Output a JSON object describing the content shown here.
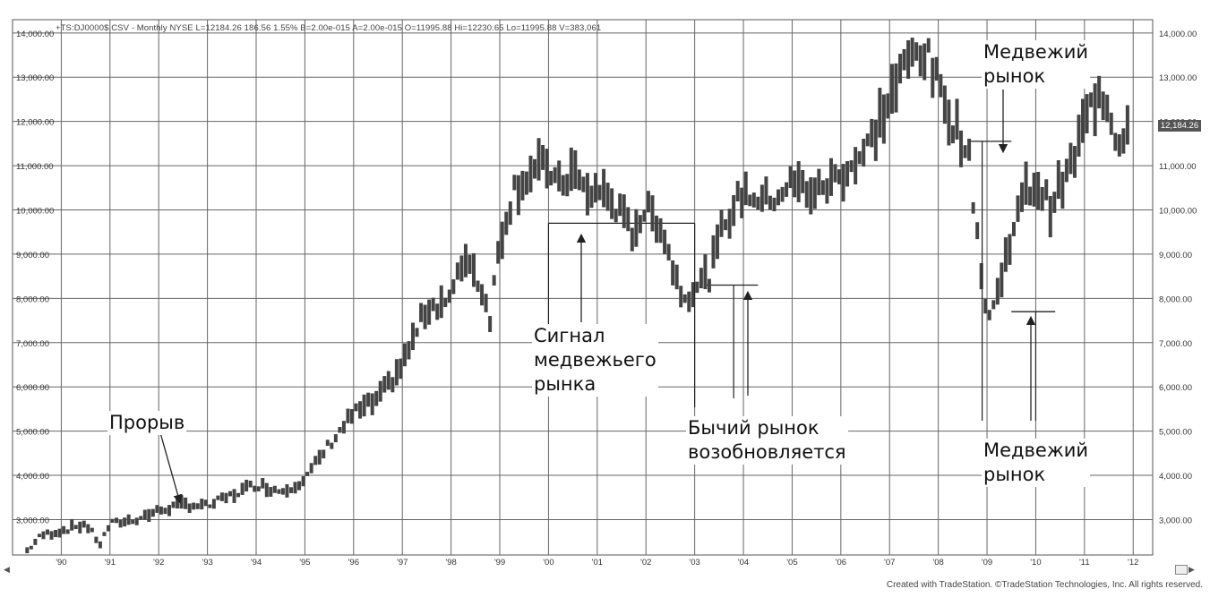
{
  "header": {
    "text": "+TS:DJ0000$.CSV - Monthly NYSE L=12184.26 186.56 1.55% B=2.00e-015 A=2.00e-015 O=11995.88 Hi=12230.65 Lo=11995.88 V=383,061"
  },
  "credit": "Created with TradeStation. ©TradeStation Technologies, Inc. All rights reserved.",
  "last_price_label": "12,184.26",
  "annotations": {
    "breakout": "Прорыв",
    "bear_signal": "Сигнал\nмедвежьего\nрынка",
    "bull_resumes": "Бычий рынок\nвозобновляется",
    "bear_market_top": "Медвежий\nрынок",
    "bear_market_bottom": "Медвежий\nрынок"
  },
  "chart_data": {
    "type": "ohlc",
    "title": "",
    "xlabel": "",
    "ylabel": "",
    "ylim": [
      2200,
      14300
    ],
    "grid": true,
    "x_ticks": [
      "'90",
      "'91",
      "'92",
      "'93",
      "'94",
      "'95",
      "'96",
      "'97",
      "'98",
      "'99",
      "'00",
      "'01",
      "'02",
      "'03",
      "'04",
      "'05",
      "'06",
      "'07",
      "'08",
      "'09",
      "'10",
      "'11",
      "'12"
    ],
    "y_ticks": [
      "3,000.00",
      "4,000.00",
      "5,000.00",
      "6,000.00",
      "7,000.00",
      "8,000.00",
      "9,000.00",
      "10,000.00",
      "11,000.00",
      "12,000.00",
      "13,000.00",
      "14,000.00"
    ],
    "y_tick_values": [
      3000,
      4000,
      5000,
      6000,
      7000,
      8000,
      9000,
      10000,
      11000,
      12000,
      13000,
      14000
    ],
    "series": [
      {
        "values_x": [
          1989.3,
          1989.6,
          1990.0,
          1990.5,
          1990.8,
          1991.0,
          1991.5,
          1992.0,
          1992.5,
          1993.0,
          1993.5,
          1994.0,
          1994.5,
          1995.0,
          1995.5,
          1996.0,
          1996.5,
          1997.0,
          1997.5,
          1998.0,
          1998.3,
          1998.6,
          1998.8,
          1999.0,
          1999.3,
          1999.6,
          2000.0,
          2000.2,
          2000.5,
          2000.8,
          2001.0,
          2001.3,
          2001.7,
          2002.0,
          2002.3,
          2002.6,
          2002.8,
          2003.0,
          2003.3,
          2003.6,
          2004.0,
          2004.5,
          2005.0,
          2005.5,
          2006.0,
          2006.5,
          2007.0,
          2007.3,
          2007.6,
          2007.8,
          2008.0,
          2008.3,
          2008.6,
          2008.8,
          2009.0,
          2009.2,
          2009.5,
          2009.8,
          2010.0,
          2010.3,
          2010.6,
          2010.8,
          2011.0,
          2011.3,
          2011.5,
          2011.7,
          2011.9
        ],
        "values_y": [
          2300,
          2650,
          2750,
          2900,
          2450,
          2900,
          3000,
          3200,
          3350,
          3300,
          3550,
          3800,
          3650,
          3900,
          4700,
          5400,
          5700,
          6500,
          7800,
          8000,
          9000,
          8300,
          7600,
          9300,
          10500,
          10800,
          11000,
          10500,
          10900,
          10300,
          10500,
          10200,
          9500,
          10000,
          9700,
          8500,
          8000,
          8300,
          8500,
          9700,
          10400,
          10200,
          10600,
          10400,
          10800,
          11300,
          12500,
          13200,
          13700,
          13400,
          12800,
          12000,
          11400,
          9500,
          7500,
          8000,
          9500,
          10400,
          10600,
          10100,
          10700,
          11200,
          12000,
          12700,
          12400,
          11400,
          12184
        ]
      }
    ]
  }
}
